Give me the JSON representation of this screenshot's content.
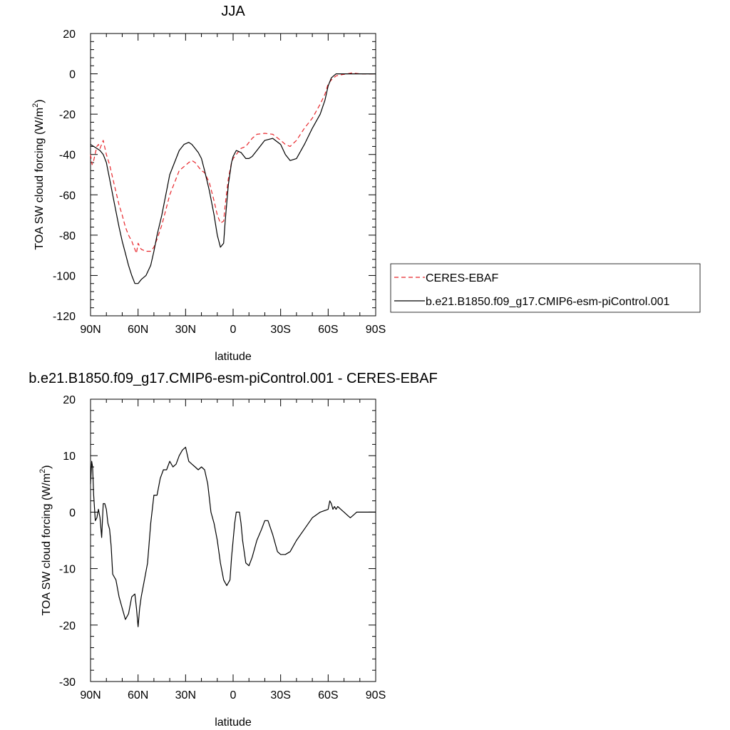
{
  "chart_data": [
    {
      "type": "line",
      "title": "JJA",
      "xlabel": "latitude",
      "ylabel": "TOA SW cloud forcing (W/m",
      "ylabel_sup": "2",
      "ylabel_close": ")",
      "xlim": [
        90,
        -90
      ],
      "ylim": [
        -120,
        20
      ],
      "x_ticks": [
        {
          "value": 90,
          "label": "90N"
        },
        {
          "value": 60,
          "label": "60N"
        },
        {
          "value": 30,
          "label": "30N"
        },
        {
          "value": 0,
          "label": "0"
        },
        {
          "value": -30,
          "label": "30S"
        },
        {
          "value": -60,
          "label": "60S"
        },
        {
          "value": -90,
          "label": "90S"
        }
      ],
      "y_ticks": [
        {
          "value": 20,
          "label": "20"
        },
        {
          "value": 0,
          "label": "0"
        },
        {
          "value": -20,
          "label": "-20"
        },
        {
          "value": -40,
          "label": "-40"
        },
        {
          "value": -60,
          "label": "-60"
        },
        {
          "value": -80,
          "label": "-80"
        },
        {
          "value": -100,
          "label": "-100"
        },
        {
          "value": -120,
          "label": "-120"
        }
      ],
      "legend": {
        "placement": "right"
      },
      "series": [
        {
          "name": "CERES-EBAF",
          "color": "#e8262b",
          "dash": "dashed",
          "x": [
            90,
            89,
            88,
            86,
            85,
            84,
            82,
            80,
            78,
            75,
            72,
            70,
            68,
            66,
            64,
            62,
            61,
            60,
            58,
            55,
            52,
            50,
            48,
            45,
            42,
            40,
            37,
            34,
            31,
            28,
            26,
            24,
            22,
            20,
            18,
            15,
            12,
            10,
            8,
            6,
            5,
            3,
            1,
            0,
            -2,
            -5,
            -8,
            -10,
            -12,
            -15,
            -20,
            -25,
            -30,
            -33,
            -36,
            -40,
            -45,
            -50,
            -55,
            -58,
            -60,
            -62,
            -65,
            -68,
            -72,
            -75,
            -80,
            -85,
            -90
          ],
          "y": [
            -40,
            -45,
            -43,
            -36,
            -35,
            -37,
            -33,
            -40,
            -45,
            -55,
            -65,
            -70,
            -76,
            -80,
            -83,
            -87,
            -89,
            -84,
            -87,
            -88,
            -88,
            -86,
            -82,
            -75,
            -66,
            -60,
            -54,
            -48,
            -46,
            -44,
            -43,
            -44,
            -46,
            -48,
            -49,
            -54,
            -63,
            -70,
            -74,
            -73,
            -65,
            -52,
            -44,
            -42,
            -40,
            -37,
            -36,
            -34,
            -32,
            -30,
            -29.5,
            -30,
            -33,
            -35,
            -36,
            -33,
            -27,
            -22,
            -15,
            -10,
            -5,
            -3,
            -1,
            -0.5,
            0,
            0.5,
            0,
            0,
            0
          ]
        },
        {
          "name": "b.e21.B1850.f09_g17.CMIP6-esm-piControl.001",
          "color": "#000000",
          "dash": "solid",
          "x": [
            90,
            88,
            86,
            84,
            82,
            80,
            78,
            75,
            72,
            70,
            68,
            66,
            64,
            62,
            61,
            60,
            58,
            55,
            52,
            50,
            48,
            45,
            42,
            40,
            37,
            34,
            31,
            28,
            26,
            24,
            22,
            20,
            18,
            15,
            12,
            10,
            8,
            6,
            5,
            3,
            1,
            0,
            -2,
            -5,
            -8,
            -10,
            -12,
            -15,
            -20,
            -25,
            -30,
            -33,
            -36,
            -40,
            -45,
            -50,
            -55,
            -58,
            -60,
            -62,
            -65,
            -68,
            -72,
            -75,
            -80,
            -85,
            -90
          ],
          "y": [
            -35,
            -36,
            -37,
            -38,
            -40,
            -44,
            -52,
            -64,
            -76,
            -83,
            -89,
            -95,
            -100,
            -104,
            -104,
            -104,
            -102,
            -100,
            -95,
            -88,
            -80,
            -70,
            -58,
            -50,
            -44,
            -38,
            -35,
            -34,
            -35,
            -37,
            -39,
            -42,
            -48,
            -58,
            -70,
            -80,
            -86,
            -84,
            -73,
            -55,
            -44,
            -41,
            -38,
            -39,
            -42,
            -42,
            -41,
            -38,
            -33,
            -32,
            -35,
            -40,
            -43,
            -42,
            -35,
            -27,
            -20,
            -13,
            -6,
            -2,
            0,
            0,
            0,
            0,
            0,
            0,
            0
          ]
        }
      ]
    },
    {
      "type": "line",
      "title": "b.e21.B1850.f09_g17.CMIP6-esm-piControl.001 - CERES-EBAF",
      "xlabel": "latitude",
      "ylabel": "TOA SW cloud forcing (W/m",
      "ylabel_sup": "2",
      "ylabel_close": ")",
      "xlim": [
        90,
        -90
      ],
      "ylim": [
        -30,
        20
      ],
      "x_ticks": [
        {
          "value": 90,
          "label": "90N"
        },
        {
          "value": 60,
          "label": "60N"
        },
        {
          "value": 30,
          "label": "30N"
        },
        {
          "value": 0,
          "label": "0"
        },
        {
          "value": -30,
          "label": "30S"
        },
        {
          "value": -60,
          "label": "60S"
        },
        {
          "value": -90,
          "label": "90S"
        }
      ],
      "y_ticks": [
        {
          "value": 20,
          "label": "20"
        },
        {
          "value": 10,
          "label": "10"
        },
        {
          "value": 0,
          "label": "0"
        },
        {
          "value": -10,
          "label": "-10"
        },
        {
          "value": -20,
          "label": "-20"
        },
        {
          "value": -30,
          "label": "-30"
        }
      ],
      "series": [
        {
          "name": "",
          "color": "#000000",
          "dash": "solid",
          "x": [
            90,
            89.3,
            88.7,
            88,
            87,
            86,
            85,
            84,
            83,
            82,
            81,
            80,
            79,
            78,
            77,
            76,
            74,
            72,
            70,
            68,
            66,
            64,
            62,
            61,
            60,
            59,
            58,
            56,
            54,
            52,
            50,
            48,
            46,
            44,
            42,
            40,
            38,
            36,
            34,
            32,
            30,
            28,
            26,
            24,
            22,
            20,
            18,
            16,
            14,
            12,
            10,
            8,
            6,
            4,
            2,
            1,
            0,
            -1,
            -2,
            -3,
            -4,
            -5,
            -6,
            -8,
            -10,
            -12,
            -15,
            -18,
            -20,
            -22,
            -25,
            -28,
            -30,
            -33,
            -36,
            -40,
            -45,
            -50,
            -55,
            -60,
            -61,
            -62,
            -63,
            -64,
            -65,
            -66,
            -68,
            -70,
            -72,
            -74,
            -76,
            -78,
            -80,
            -85,
            -90
          ],
          "y": [
            5,
            9,
            8,
            3,
            -1.5,
            -1,
            0.5,
            -1,
            -4.5,
            1.5,
            1.5,
            0.5,
            -2,
            -3,
            -6,
            -11,
            -12,
            -15,
            -17,
            -19,
            -18,
            -15,
            -14.5,
            -17,
            -20.3,
            -17,
            -15,
            -12,
            -9,
            -2,
            3,
            3,
            6,
            7.5,
            7.5,
            9,
            8,
            8.5,
            10,
            11,
            11.5,
            9,
            8.5,
            8,
            7.5,
            8,
            7.5,
            5,
            0,
            -2,
            -5,
            -9,
            -12,
            -13,
            -12,
            -8,
            -5,
            -2,
            0,
            0,
            0,
            -2,
            -5,
            -9,
            -9.5,
            -8,
            -5,
            -3,
            -1.5,
            -1.5,
            -4,
            -7,
            -7.5,
            -7.5,
            -7,
            -5,
            -3,
            -1,
            0,
            0.5,
            2,
            1.5,
            0.5,
            1,
            0.5,
            1,
            0.5,
            0,
            -0.5,
            -1,
            -0.5,
            0,
            0,
            0,
            0
          ]
        }
      ]
    }
  ]
}
